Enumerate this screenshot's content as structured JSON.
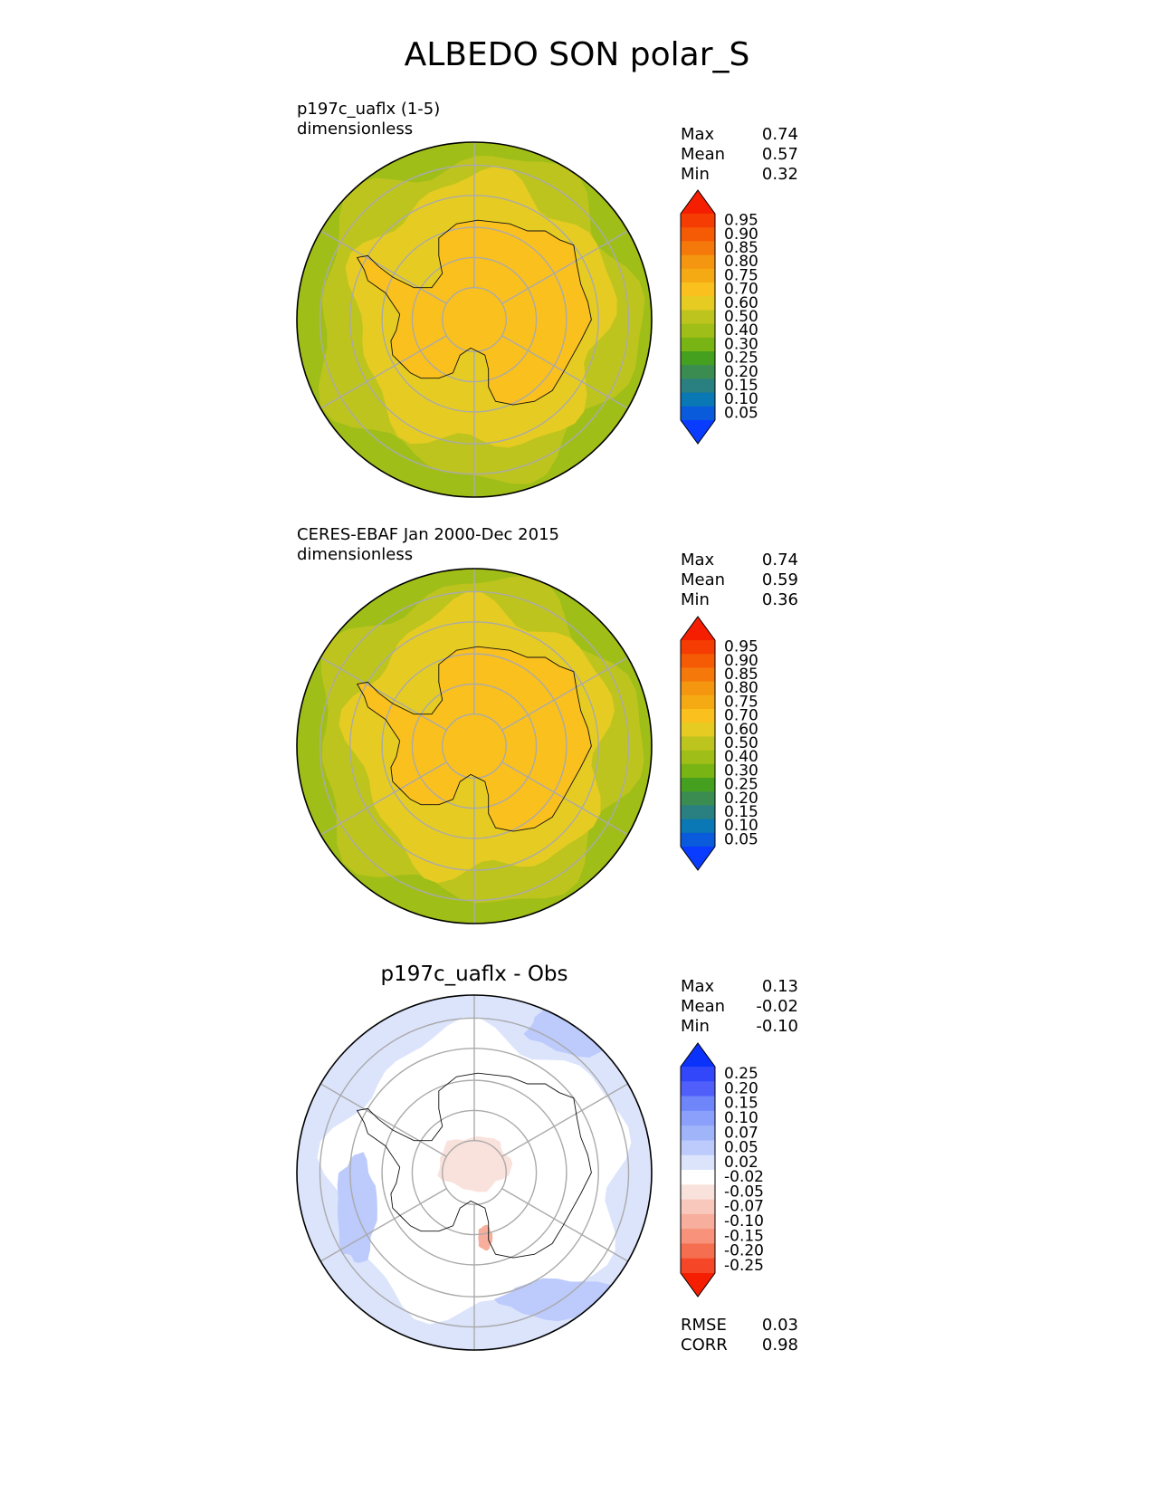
{
  "figure": {
    "title": "ALBEDO SON polar_S"
  },
  "panels": [
    {
      "name": "test",
      "line1": "p197c_uaflx (1-5)",
      "line2": "dimensionless",
      "center_title": "",
      "stats": [
        {
          "label": "Max",
          "value": "0.74"
        },
        {
          "label": "Mean",
          "value": "0.57"
        },
        {
          "label": "Min",
          "value": "0.32"
        }
      ],
      "footer_stats": []
    },
    {
      "name": "reference",
      "line1": "CERES-EBAF Jan 2000-Dec 2015",
      "line2": "dimensionless",
      "center_title": "",
      "stats": [
        {
          "label": "Max",
          "value": "0.74"
        },
        {
          "label": "Mean",
          "value": "0.59"
        },
        {
          "label": "Min",
          "value": "0.36"
        }
      ],
      "footer_stats": []
    },
    {
      "name": "difference",
      "line1": "",
      "line2": "",
      "center_title": "p197c_uaflx - Obs",
      "stats": [
        {
          "label": "Max",
          "value": "0.13"
        },
        {
          "label": "Mean",
          "value": "-0.02"
        },
        {
          "label": "Min",
          "value": "-0.10"
        }
      ],
      "footer_stats": [
        {
          "label": "RMSE",
          "value": "0.03"
        },
        {
          "label": "CORR",
          "value": "0.98"
        }
      ]
    }
  ],
  "chart_data": [
    {
      "type": "heatmap",
      "projection": "south-polar-stereographic",
      "title": "p197c_uaflx (1-5)",
      "units": "dimensionless",
      "colorbar": {
        "ticks": [
          "0.05",
          "0.10",
          "0.15",
          "0.20",
          "0.25",
          "0.30",
          "0.40",
          "0.50",
          "0.60",
          "0.70",
          "0.75",
          "0.80",
          "0.85",
          "0.90",
          "0.95"
        ],
        "colors": [
          "#0a3cff",
          "#0a5adc",
          "#0a78b4",
          "#2a8080",
          "#3a8c50",
          "#46a020",
          "#78b414",
          "#a0be18",
          "#bec41e",
          "#e6cc22",
          "#fac01e",
          "#f5aa14",
          "#f59610",
          "#f5780a",
          "#f55a05",
          "#f53c02",
          "#f51e00"
        ],
        "extend": "both"
      },
      "field_levels": {
        "ocean_edge": 0.45,
        "ocean_mid": 0.52,
        "sea_ice": 0.62,
        "continent": 0.72
      },
      "max": 0.74,
      "mean": 0.57,
      "min": 0.32
    },
    {
      "type": "heatmap",
      "projection": "south-polar-stereographic",
      "title": "CERES-EBAF Jan 2000-Dec 2015",
      "units": "dimensionless",
      "colorbar": {
        "ticks": [
          "0.05",
          "0.10",
          "0.15",
          "0.20",
          "0.25",
          "0.30",
          "0.40",
          "0.50",
          "0.60",
          "0.70",
          "0.75",
          "0.80",
          "0.85",
          "0.90",
          "0.95"
        ],
        "colors": [
          "#0a3cff",
          "#0a5adc",
          "#0a78b4",
          "#2a8080",
          "#3a8c50",
          "#46a020",
          "#78b414",
          "#a0be18",
          "#bec41e",
          "#e6cc22",
          "#fac01e",
          "#f5aa14",
          "#f59610",
          "#f5780a",
          "#f55a05",
          "#f53c02",
          "#f51e00"
        ],
        "extend": "both"
      },
      "field_levels": {
        "ocean_edge": 0.48,
        "ocean_mid": 0.55,
        "sea_ice": 0.64,
        "continent": 0.72
      },
      "max": 0.74,
      "mean": 0.59,
      "min": 0.36
    },
    {
      "type": "heatmap",
      "projection": "south-polar-stereographic",
      "title": "p197c_uaflx - Obs",
      "colorbar": {
        "ticks": [
          "0.25",
          "0.20",
          "0.15",
          "0.10",
          "0.07",
          "0.05",
          "0.02",
          "-0.02",
          "-0.05",
          "-0.07",
          "-0.10",
          "-0.15",
          "-0.20",
          "-0.25"
        ],
        "colors": [
          "#f51e00",
          "#f54628",
          "#f56e50",
          "#f8927a",
          "#f8ae9c",
          "#f8c8bc",
          "#fae2dc",
          "#ffffff",
          "#dce4fc",
          "#bccafc",
          "#a0b4fa",
          "#8aa0fa",
          "#6e86fa",
          "#505ffa",
          "#3246fa",
          "#0a32fa"
        ],
        "extend": "both"
      },
      "max": 0.13,
      "mean": -0.02,
      "min": -0.1,
      "rmse": 0.03,
      "corr": 0.98
    }
  ]
}
